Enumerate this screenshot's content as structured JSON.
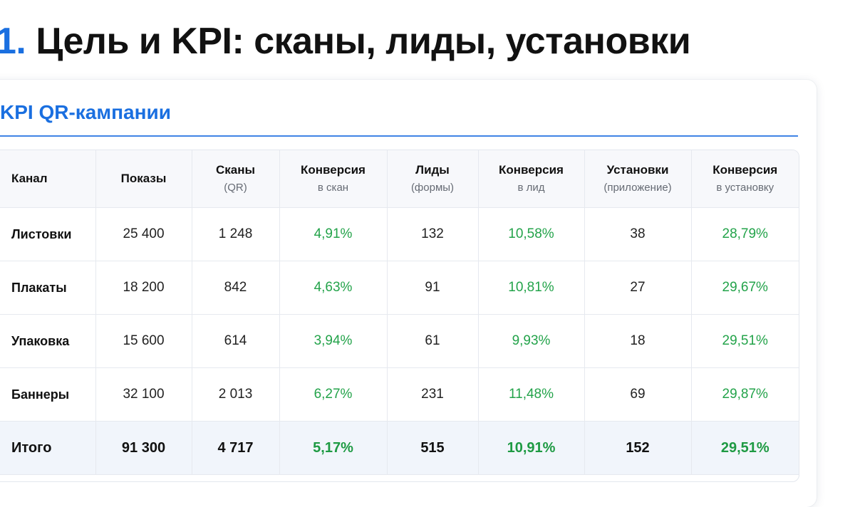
{
  "slide": {
    "number": "1.",
    "title": "Цель и KPI: сканы, лиды, установки"
  },
  "card": {
    "title": "KPI QR-кампании"
  },
  "accent_color": "#1a6fe0",
  "positive_color": "#23a34a",
  "table": {
    "headers": [
      {
        "main": "Канал",
        "sub": ""
      },
      {
        "main": "Показы",
        "sub": ""
      },
      {
        "main": "Сканы",
        "sub": "(QR)"
      },
      {
        "main": "Конверсия",
        "sub": "в скан"
      },
      {
        "main": "Лиды",
        "sub": "(формы)"
      },
      {
        "main": "Конверсия",
        "sub": "в лид"
      },
      {
        "main": "Установки",
        "sub": "(приложение)"
      },
      {
        "main": "Конверсия",
        "sub": "в установку"
      }
    ],
    "rows": [
      {
        "channel": "Листовки",
        "impressions": "25 400",
        "scans": "1 248",
        "scan_conv": "4,91%",
        "leads": "132",
        "lead_conv": "10,58%",
        "installs": "38",
        "install_conv": "28,79%"
      },
      {
        "channel": "Плакаты",
        "impressions": "18 200",
        "scans": "842",
        "scan_conv": "4,63%",
        "leads": "91",
        "lead_conv": "10,81%",
        "installs": "27",
        "install_conv": "29,67%"
      },
      {
        "channel": "Упаковка",
        "impressions": "15 600",
        "scans": "614",
        "scan_conv": "3,94%",
        "leads": "61",
        "lead_conv": "9,93%",
        "installs": "18",
        "install_conv": "29,51%"
      },
      {
        "channel": "Баннеры",
        "impressions": "32 100",
        "scans": "2 013",
        "scan_conv": "6,27%",
        "leads": "231",
        "lead_conv": "11,48%",
        "installs": "69",
        "install_conv": "29,87%"
      }
    ],
    "total": {
      "channel": "Итого",
      "impressions": "91 300",
      "scans": "4 717",
      "scan_conv": "5,17%",
      "leads": "515",
      "lead_conv": "10,91%",
      "installs": "152",
      "install_conv": "29,51%"
    }
  }
}
